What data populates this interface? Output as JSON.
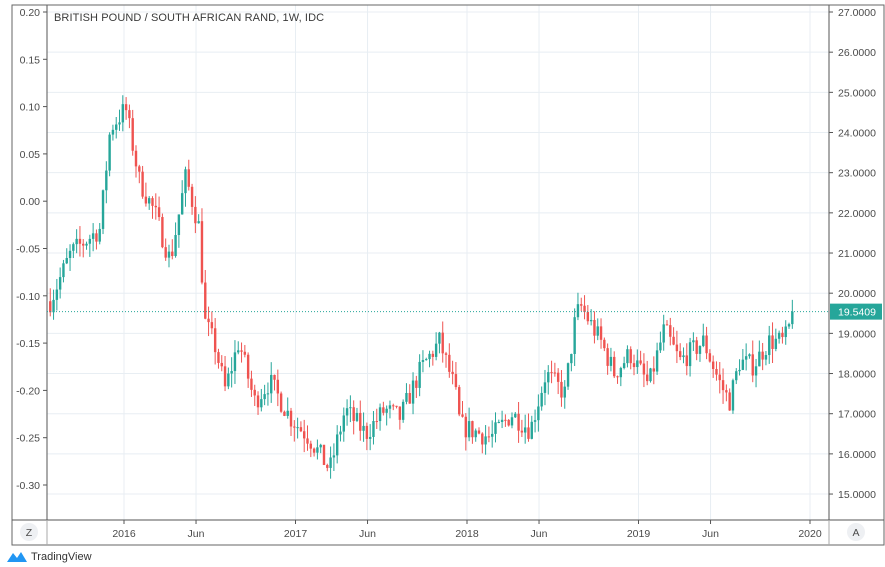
{
  "chart_data": {
    "type": "candlestick",
    "title": "BRITISH POUND / SOUTH AFRICAN RAND, 1W, IDC",
    "x_tick_labels": [
      "2016",
      "Jun",
      "2017",
      "Jun",
      "2018",
      "Jun",
      "2019",
      "Jun",
      "2020"
    ],
    "x_ticks_years": [
      2016.0,
      2016.42,
      2017.0,
      2017.42,
      2018.0,
      2018.42,
      2019.0,
      2019.42,
      2020.0
    ],
    "left_axis": {
      "ylim": [
        -0.31,
        0.205
      ],
      "ticks": [
        "0.20",
        "0.15",
        "0.10",
        "0.05",
        "0.00",
        "-0.05",
        "-0.10",
        "-0.15",
        "-0.20",
        "-0.25",
        "-0.30"
      ]
    },
    "right_axis": {
      "ylim": [
        14.8,
        27.0
      ],
      "ticks": [
        "27.0000",
        "26.0000",
        "25.0000",
        "24.0000",
        "23.0000",
        "22.0000",
        "21.0000",
        "20.0000",
        "19.0000",
        "18.0000",
        "17.0000",
        "16.0000",
        "15.0000"
      ]
    },
    "last_price": "19.5409",
    "approx_close_path": [
      [
        2015.57,
        19.8
      ],
      [
        2015.69,
        21.0
      ],
      [
        2015.86,
        21.6
      ],
      [
        2015.92,
        24.1
      ],
      [
        2016.01,
        24.6
      ],
      [
        2016.09,
        22.8
      ],
      [
        2016.18,
        22.0
      ],
      [
        2016.27,
        20.8
      ],
      [
        2016.36,
        22.9
      ],
      [
        2016.44,
        21.6
      ],
      [
        2016.47,
        19.3
      ],
      [
        2016.53,
        18.7
      ],
      [
        2016.59,
        17.6
      ],
      [
        2016.67,
        18.8
      ],
      [
        2016.76,
        17.3
      ],
      [
        2016.85,
        17.8
      ],
      [
        2016.97,
        16.9
      ],
      [
        2017.08,
        16.4
      ],
      [
        2017.2,
        15.6
      ],
      [
        2017.29,
        17.1
      ],
      [
        2017.41,
        16.5
      ],
      [
        2017.52,
        17.1
      ],
      [
        2017.61,
        16.9
      ],
      [
        2017.73,
        18.1
      ],
      [
        2017.84,
        18.8
      ],
      [
        2017.93,
        17.6
      ],
      [
        2017.96,
        16.7
      ],
      [
        2018.14,
        16.4
      ],
      [
        2018.26,
        17.0
      ],
      [
        2018.37,
        16.6
      ],
      [
        2018.46,
        18.0
      ],
      [
        2018.57,
        17.5
      ],
      [
        2018.63,
        19.3
      ],
      [
        2018.66,
        19.7
      ],
      [
        2018.78,
        18.8
      ],
      [
        2018.86,
        18.0
      ],
      [
        2018.95,
        18.5
      ],
      [
        2019.06,
        17.7
      ],
      [
        2019.15,
        19.1
      ],
      [
        2019.24,
        18.3
      ],
      [
        2019.38,
        18.8
      ],
      [
        2019.47,
        17.8
      ],
      [
        2019.53,
        17.3
      ],
      [
        2019.59,
        18.3
      ],
      [
        2019.67,
        18.2
      ],
      [
        2019.76,
        18.8
      ],
      [
        2019.85,
        18.8
      ],
      [
        2019.91,
        19.54
      ]
    ],
    "colors": {
      "up": "#26a69a",
      "down": "#ef5350",
      "last_price": "#26a69a"
    }
  },
  "axis_buttons": {
    "left": "Z",
    "right": "A"
  },
  "brand": "TradingView"
}
